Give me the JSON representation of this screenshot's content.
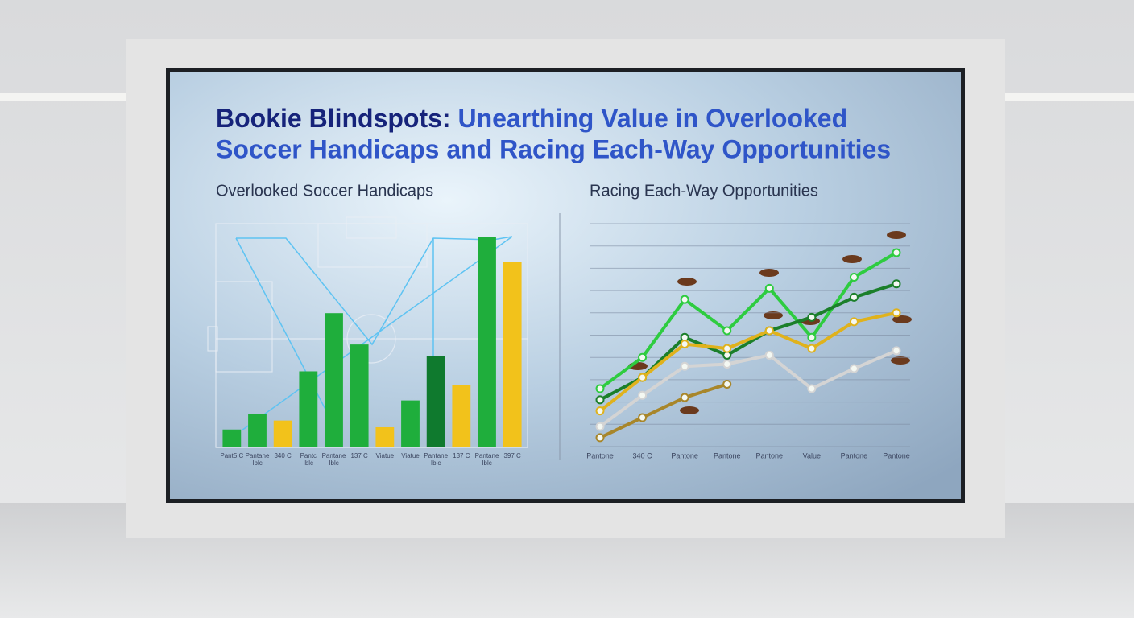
{
  "header": {
    "title_lead": "Bookie Blindspots:",
    "title_line1": "Unearthing Value in Overlooked",
    "title_line2": "Soccer Handicaps and Racing Each-Way Opportunities"
  },
  "chart_data": [
    {
      "type": "bar",
      "title": "Overlooked Soccer Handicaps",
      "categories": [
        "Pant5 C",
        "Pantane Iblc",
        "340 C",
        "Pantc Iblc",
        "Pantane Iblc",
        "137 C",
        "Viatue",
        "Viatue",
        "Pantane Iblc",
        "137 C",
        "Pantane Iblc",
        "397 C"
      ],
      "values": [
        8,
        15,
        12,
        34,
        60,
        46,
        9,
        21,
        41,
        28,
        94,
        83
      ],
      "colors": [
        "#1fae3c",
        "#1fae3c",
        "#f2c21b",
        "#1fae3c",
        "#1fae3c",
        "#1fae3c",
        "#f2c21b",
        "#1fae3c",
        "#0f7a2e",
        "#f2c21b",
        "#1fae3c",
        "#f2c21b"
      ],
      "ylim": [
        0,
        100
      ]
    },
    {
      "type": "line",
      "title": "Racing Each-Way Opportunities",
      "categories": [
        "Pantone",
        "340 C",
        "Pantone",
        "Pantone",
        "Pantone",
        "Value",
        "Pantone",
        "Pantone"
      ],
      "series": [
        {
          "color": "#2ecc40",
          "values": [
            26,
            40,
            66,
            52,
            71,
            49,
            76,
            87
          ]
        },
        {
          "color": "#1b7f2a",
          "values": [
            21,
            31,
            49,
            41,
            52,
            58,
            67,
            73
          ]
        },
        {
          "color": "#e0b21c",
          "values": [
            16,
            31,
            46,
            44,
            52,
            44,
            56,
            60
          ]
        },
        {
          "color": "#d4d4d4",
          "values": [
            9,
            23,
            36,
            37,
            41,
            26,
            35,
            43
          ]
        },
        {
          "color": "#a8862a",
          "values": [
            4,
            13,
            22,
            28,
            null,
            null,
            null,
            null
          ]
        }
      ],
      "ylim": [
        0,
        100
      ],
      "grid": true
    }
  ]
}
